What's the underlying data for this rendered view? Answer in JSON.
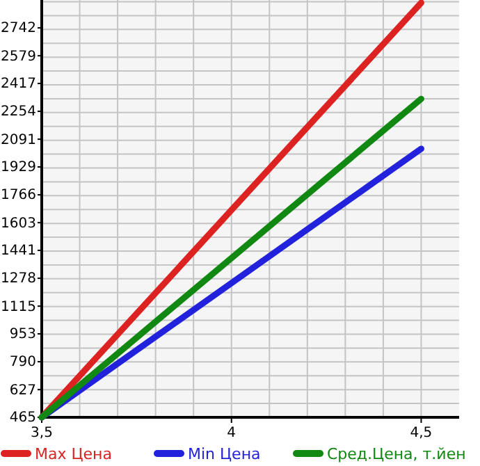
{
  "chart_data": {
    "type": "line",
    "x": [
      3.5,
      4.5
    ],
    "xlim": [
      3.5,
      4.6
    ],
    "xticks": [
      {
        "value": 3.5,
        "label": "3,5"
      },
      4,
      {
        "value": 4.5,
        "label": "4,5"
      }
    ],
    "ylim": [
      465,
      2905
    ],
    "yticks": [
      465,
      627,
      790,
      953,
      1115,
      1278,
      1441,
      1603,
      1766,
      1929,
      2091,
      2254,
      2417,
      2579,
      2742
    ],
    "grid": true,
    "legend": "bottom",
    "series": [
      {
        "name": "Max Цена",
        "color": "#dd2222",
        "values": [
          465,
          2889
        ]
      },
      {
        "name": "Min Цена",
        "color": "#2222dd",
        "values": [
          465,
          2035
        ]
      },
      {
        "name": "Сред.Цена, т.йен",
        "color": "#118811",
        "values": [
          465,
          2327
        ]
      }
    ]
  }
}
